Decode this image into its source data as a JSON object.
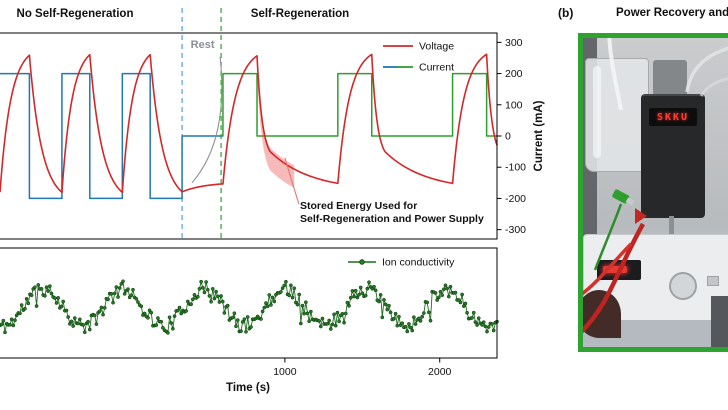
{
  "figure": {
    "panel_b": {
      "label": "(b)",
      "title": "Power Recovery and",
      "led_text": "SKKU",
      "border_color": "#2fa32f"
    }
  },
  "chart_data": [
    {
      "type": "line",
      "panel": "top",
      "region_titles": [
        "No Self-Regeneration",
        "Self-Regeneration"
      ],
      "rest_label": "Rest",
      "rest_boundaries_s": [
        336,
        588
      ],
      "rest_line_colors": [
        "#4f9fd8",
        "#2ca02c"
      ],
      "x_range": [
        -840,
        2370
      ],
      "y_right": {
        "label": "Current (mA)",
        "range": [
          -330,
          330
        ],
        "ticks": [
          300,
          200,
          100,
          0,
          -100,
          -200,
          -300
        ]
      },
      "legend": [
        {
          "label": "Voltage",
          "colors": [
            "#d62728"
          ]
        },
        {
          "label": "Current",
          "colors": [
            "#1f77b4",
            "#2ca02c"
          ]
        }
      ],
      "series": {
        "current_no_regen": {
          "name": "Current (no self-regeneration)",
          "unit": "mA",
          "color": "#1f77b4",
          "points": [
            [
              -840,
              200
            ],
            [
              -650,
              200
            ],
            [
              -650,
              -200
            ],
            [
              -440,
              -200
            ],
            [
              -440,
              200
            ],
            [
              -260,
              200
            ],
            [
              -260,
              -200
            ],
            [
              -50,
              -200
            ],
            [
              -50,
              200
            ],
            [
              130,
              200
            ],
            [
              130,
              -200
            ],
            [
              336,
              -200
            ],
            [
              336,
              0
            ],
            [
              588,
              0
            ]
          ]
        },
        "current_regen": {
          "name": "Current (self-regeneration)",
          "unit": "mA",
          "color": "#2ca02c",
          "points": [
            [
              588,
              0
            ],
            [
              600,
              0
            ],
            [
              600,
              200
            ],
            [
              820,
              200
            ],
            [
              820,
              0
            ],
            [
              1342,
              0
            ],
            [
              1342,
              200
            ],
            [
              1561,
              200
            ],
            [
              1561,
              0
            ],
            [
              2083,
              0
            ],
            [
              2083,
              200
            ],
            [
              2303,
              200
            ],
            [
              2303,
              0
            ],
            [
              2370,
              0
            ]
          ]
        },
        "voltage": {
          "name": "Voltage",
          "color": "#d62728",
          "segments": [
            {
              "t0": -840,
              "t1": -650,
              "v0": -180,
              "asym": 290,
              "tau": 70
            },
            {
              "t0": -650,
              "t1": -440,
              "v0": 259,
              "asym": -215,
              "tau": 80
            },
            {
              "t0": -440,
              "t1": -260,
              "v0": -181,
              "asym": 290,
              "tau": 65
            },
            {
              "t0": -260,
              "t1": -50,
              "v0": 260,
              "asym": -215,
              "tau": 80
            },
            {
              "t0": -50,
              "t1": 130,
              "v0": -181,
              "asym": 290,
              "tau": 65
            },
            {
              "t0": 130,
              "t1": 336,
              "v0": 260,
              "asym": -215,
              "tau": 80
            },
            {
              "t0": 336,
              "t1": 600,
              "v0": -179,
              "asym": -148,
              "tau": 150
            },
            {
              "t0": 600,
              "t1": 820,
              "v0": -154,
              "asym": 285,
              "tau": 80
            },
            {
              "t0": 820,
              "t1": 905,
              "v0": 257,
              "asym": -80,
              "tau": 35
            },
            {
              "t0": 905,
              "t1": 1342,
              "v0": -50,
              "asym": -175,
              "tau": 260
            },
            {
              "t0": 1342,
              "t1": 1561,
              "v0": -152,
              "asym": 285,
              "tau": 75
            },
            {
              "t0": 1561,
              "t1": 1646,
              "v0": 261,
              "asym": -80,
              "tau": 35
            },
            {
              "t0": 1646,
              "t1": 2083,
              "v0": -50,
              "asym": -175,
              "tau": 260
            },
            {
              "t0": 2083,
              "t1": 2303,
              "v0": -152,
              "asym": 285,
              "tau": 75
            },
            {
              "t0": 2303,
              "t1": 2370,
              "v0": 261,
              "asym": -80,
              "tau": 35
            }
          ]
        }
      },
      "highlight": {
        "t0": 822,
        "t1": 1060,
        "offset_up": 12,
        "offset_down": 60,
        "color": "rgba(229,57,53,0.35)"
      },
      "annotation": {
        "line1": "Stored Energy Used for",
        "line2": "Self-Regeneration and Power Supply"
      }
    },
    {
      "type": "scatter-line",
      "panel": "bottom",
      "legend_label": "Ion conductivity",
      "color": "#1d6f1d",
      "dot_fill": "#237d23",
      "dot_edge": "#0b2e0b",
      "x_range": [
        -840,
        2370
      ],
      "x_ticks": [
        1000,
        2000
      ],
      "xlabel": "Time (s)",
      "wave": {
        "mean": 0.46,
        "amplitude": 0.17,
        "period": 520,
        "peak_t": -560,
        "noise": 0.07,
        "spike_chance": 0.05,
        "spike_mag": 0.14,
        "seed": 11,
        "n": 300
      }
    }
  ]
}
